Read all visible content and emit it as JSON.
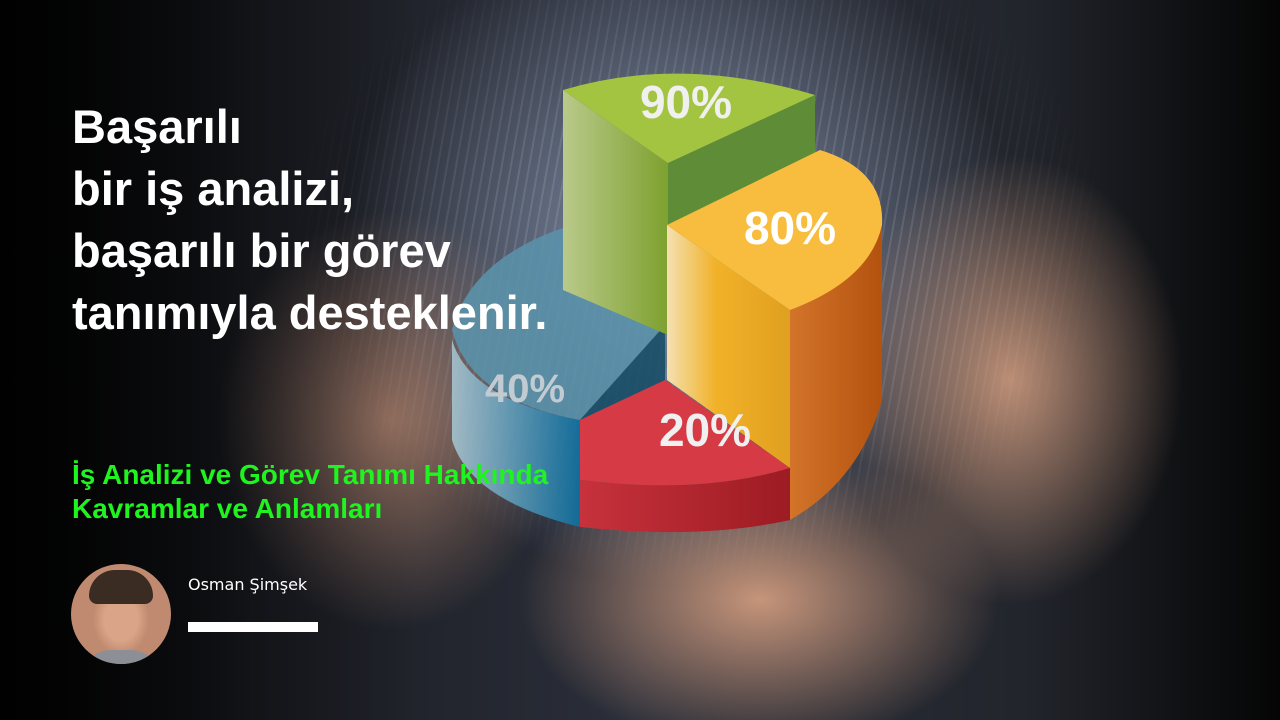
{
  "title_lines": [
    "Başarılı",
    "bir iş analizi,",
    "başarılı bir görev",
    "tanımıyla desteklenir."
  ],
  "subtitle_lines": [
    "İş Analizi ve Görev Tanımı Hakkında",
    "Kavramlar ve Anlamları"
  ],
  "author": {
    "name": "Osman Şimşek"
  },
  "pie_labels": {
    "green": "90%",
    "orange": "80%",
    "blue": "40%",
    "red": "20%"
  },
  "colors": {
    "subtitle": "#1ef41e",
    "green": "#8db83a",
    "orange": "#f3b431",
    "blue": "#4d8aa6",
    "red": "#d9313b"
  }
}
